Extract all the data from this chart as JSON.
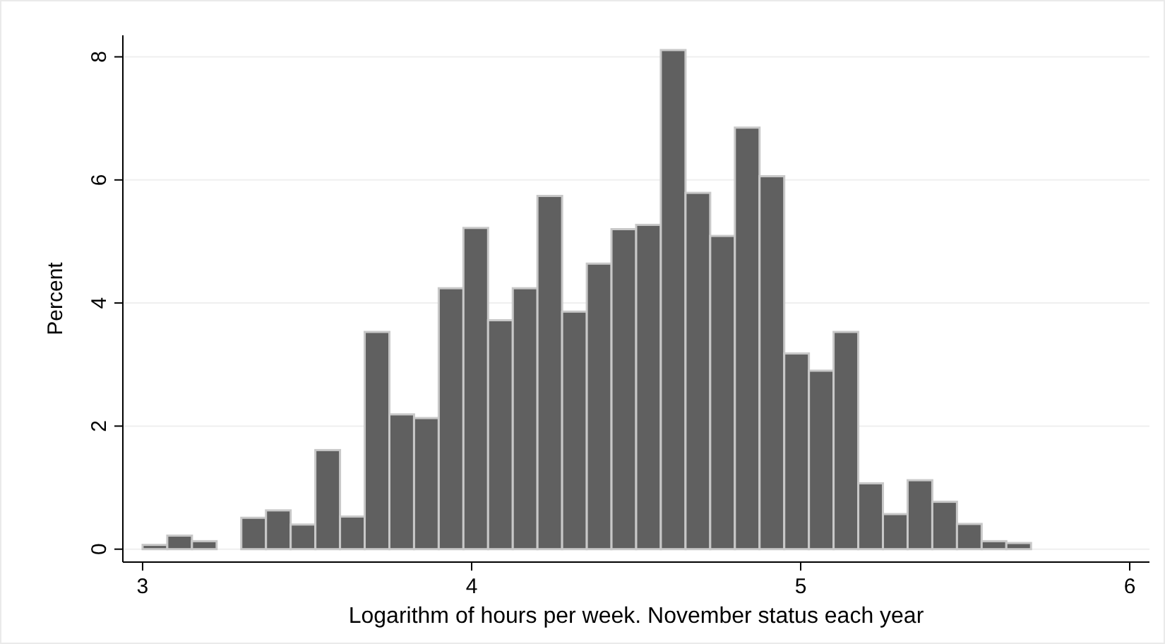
{
  "chart_data": {
    "type": "histogram",
    "xlabel": "Logarithm of hours per week. November status each year",
    "ylabel": "Percent",
    "bins": [
      3,
      3.075,
      3.15,
      3.225,
      3.3,
      3.375,
      3.45,
      3.525,
      3.6,
      3.675,
      3.75,
      3.825,
      3.9,
      3.975,
      4.05,
      4.125,
      4.2,
      4.275,
      4.35,
      4.425,
      4.5,
      4.575,
      4.65,
      4.725,
      4.8,
      4.875,
      4.95,
      5.025,
      5.1,
      5.175,
      5.25,
      5.325,
      5.4,
      5.475,
      5.55,
      5.625,
      5.7
    ],
    "values": [
      0.07,
      0.22,
      0.13,
      0,
      0.51,
      0.63,
      0.4,
      1.61,
      0.53,
      3.53,
      2.19,
      2.13,
      4.24,
      5.22,
      3.72,
      4.24,
      5.74,
      3.86,
      4.64,
      5.2,
      5.27,
      8.11,
      5.79,
      5.09,
      6.85,
      6.06,
      3.18,
      2.9,
      3.53,
      1.07,
      0.57,
      1.12,
      0.77,
      0.41,
      0.13,
      0.1
    ],
    "color": "#606060",
    "xlim": [
      2.94,
      6.06
    ],
    "ylim": [
      -0.21,
      8.35
    ],
    "xticks": [
      3,
      4,
      5,
      6
    ],
    "yticks": [
      0,
      2,
      4,
      6,
      8
    ],
    "grid": "y"
  }
}
